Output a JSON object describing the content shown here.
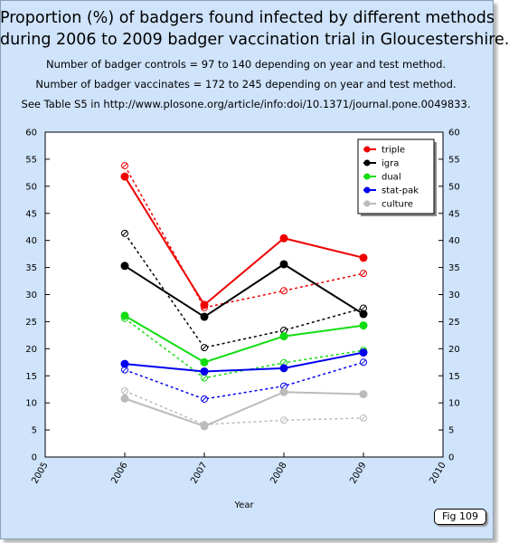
{
  "title_line1": "Proportion (%) of badgers found infected by different methods",
  "title_line2": "during 2006 to 2009 badger vaccination trial in Gloucestershire.",
  "note_controls": "Number of badger controls = 97 to 140 depending on year and test method.",
  "note_vaccinates": "Number of badger vaccinates = 172 to 245 depending on year and test method.",
  "note_reference": "See Table S5 in http://www.plosone.org/article/info:doi/10.1371/journal.pone.0049833.",
  "fig_label": "Fig 109",
  "chart_data": {
    "type": "line",
    "xlabel": "Year",
    "ylabel": "",
    "xlim": [
      2005,
      2010
    ],
    "ylim": [
      0,
      60
    ],
    "x_ticks": [
      "2005",
      "2006",
      "2007",
      "2008",
      "2009",
      "2010"
    ],
    "y_ticks": [
      "0",
      "5",
      "10",
      "15",
      "20",
      "25",
      "30",
      "35",
      "40",
      "45",
      "50",
      "55",
      "60"
    ],
    "y_axis_both_sides": true,
    "grid": false,
    "legend_position": "top-right",
    "x": [
      2006,
      2007,
      2008,
      2009
    ],
    "series": [
      {
        "name": "triple",
        "color": "#ee0000",
        "controls": [
          51.8,
          28.1,
          40.4,
          36.8
        ],
        "vaccinates": [
          53.8,
          27.6,
          30.7,
          33.9
        ]
      },
      {
        "name": "igra",
        "color": "#000000",
        "controls": [
          35.3,
          25.9,
          35.6,
          26.4
        ],
        "vaccinates": [
          41.3,
          20.2,
          23.4,
          27.5
        ]
      },
      {
        "name": "dual",
        "color": "#11dd11",
        "controls": [
          26.1,
          17.5,
          22.3,
          24.3
        ],
        "vaccinates": [
          25.6,
          14.6,
          17.4,
          19.7
        ]
      },
      {
        "name": "stat-pak",
        "color": "#0000ee",
        "controls": [
          17.2,
          15.8,
          16.4,
          19.3
        ],
        "vaccinates": [
          16.1,
          10.7,
          13.1,
          17.5
        ]
      },
      {
        "name": "culture",
        "color": "#bbbbbb",
        "controls": [
          10.8,
          5.7,
          12.0,
          11.6
        ],
        "vaccinates": [
          12.2,
          6.0,
          6.8,
          7.2
        ]
      }
    ]
  }
}
